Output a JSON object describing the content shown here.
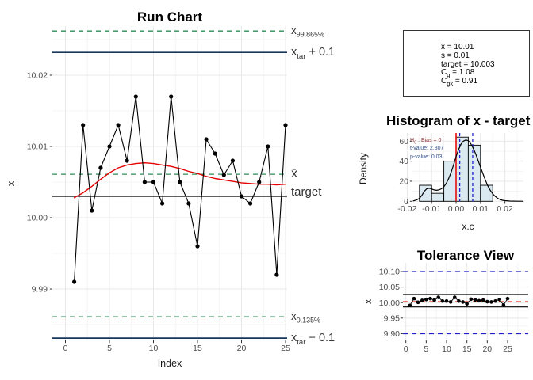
{
  "colors": {
    "series": "#000000",
    "smoother_red": "#e60000",
    "quantile_dashed_green": "#2e8b57",
    "limit_solid_navy": "#16365c",
    "spec_dashed_blue": "#2222cc",
    "target_dashed_red": "#e60000",
    "histogram_fill": "#dbe9f1",
    "grid_major": "#e8e8e8",
    "grid_minor": "#f4f4f4",
    "tick_label": "#4d4d4d",
    "annotation_h0": "#8b3333",
    "annotation_tp": "#33508b"
  },
  "chart_data": [
    {
      "id": "run_chart",
      "type": "line",
      "title": "Run Chart",
      "xlabel": "Index",
      "ylabel": "x",
      "x": [
        1,
        2,
        3,
        4,
        5,
        6,
        7,
        8,
        9,
        10,
        11,
        12,
        13,
        14,
        15,
        16,
        17,
        18,
        19,
        20,
        21,
        22,
        23,
        24,
        25
      ],
      "values": [
        9.991,
        10.013,
        10.001,
        10.007,
        10.01,
        10.013,
        10.008,
        10.017,
        10.005,
        10.005,
        10.002,
        10.017,
        10.005,
        10.002,
        9.996,
        10.011,
        10.009,
        10.006,
        10.008,
        10.003,
        10.002,
        10.005,
        10.01,
        9.992,
        10.013
      ],
      "smoother": {
        "color": "#e60000",
        "x": [
          1,
          2,
          3,
          4,
          5,
          6,
          7,
          8,
          9,
          10,
          11,
          12,
          13,
          14,
          15,
          16,
          17,
          18,
          19,
          20,
          21,
          22,
          23,
          24,
          25
        ],
        "y": [
          10.0028,
          10.0035,
          10.0044,
          10.0054,
          10.0063,
          10.007,
          10.0074,
          10.0076,
          10.0077,
          10.0076,
          10.0074,
          10.0072,
          10.0069,
          10.0065,
          10.0062,
          10.0058,
          10.0055,
          10.0053,
          10.0051,
          10.0049,
          10.0048,
          10.0047,
          10.0047,
          10.0046,
          10.0047
        ]
      },
      "hlines": [
        {
          "value": 10.0262,
          "color": "#2e8b57",
          "dash": true,
          "width": 1.3,
          "label": {
            "base": "x",
            "sub": "99.865%",
            "post": ""
          }
        },
        {
          "value": 10.0232,
          "color": "#16365c",
          "dash": false,
          "width": 1.7,
          "label": {
            "base": "x",
            "sub": "tar",
            "post": " + 0.1"
          }
        },
        {
          "value": 10.0061,
          "color": "#2e8b57",
          "dash": true,
          "width": 1.3,
          "label": {
            "base": "x̄",
            "sub": "",
            "post": ""
          }
        },
        {
          "value": 10.003,
          "color": "#000000",
          "dash": false,
          "width": 1.2,
          "label": {
            "base": "target",
            "sub": "",
            "post": ""
          }
        },
        {
          "value": 9.9861,
          "color": "#2e8b57",
          "dash": true,
          "width": 1.3,
          "label": {
            "base": "x",
            "sub": "0.135%",
            "post": ""
          }
        },
        {
          "value": 9.9831,
          "color": "#16365c",
          "dash": false,
          "width": 1.7,
          "label": {
            "base": "x",
            "sub": "tar",
            "post": " − 0.1"
          }
        }
      ],
      "xticks": [
        0,
        5,
        10,
        15,
        20,
        25
      ],
      "xtick_labels": [
        "0",
        "5",
        "10",
        "15",
        "20",
        "25"
      ],
      "yticks": [
        9.99,
        10.0,
        10.01,
        10.02
      ],
      "ytick_labels": [
        "9.99",
        "10.00",
        "10.01",
        "10.02"
      ],
      "xlim": [
        -1.486,
        25.18
      ],
      "ylim": [
        9.98278,
        10.02689
      ]
    },
    {
      "id": "histogram",
      "type": "histogram",
      "title": "Histogram of x - target",
      "xlabel": "x.c",
      "ylabel": "Density",
      "bins": {
        "start": -0.015,
        "width": 0.005,
        "heights": [
          16,
          8,
          40,
          64,
          56,
          16
        ]
      },
      "bar_fill": "#dbe9f1",
      "bar_stroke": "#000000",
      "density_curve": {
        "x": [
          -0.0175,
          -0.016,
          -0.015,
          -0.014,
          -0.013,
          -0.012,
          -0.011,
          -0.01,
          -0.009,
          -0.008,
          -0.007,
          -0.006,
          -0.005,
          -0.004,
          -0.003,
          -0.002,
          -0.001,
          0.0,
          0.001,
          0.002,
          0.003,
          0.004,
          0.005,
          0.006,
          0.007,
          0.008,
          0.009,
          0.01,
          0.011,
          0.012,
          0.013,
          0.014,
          0.015,
          0.016,
          0.017,
          0.018,
          0.019,
          0.02,
          0.022,
          0.025,
          0.0275
        ],
        "y": [
          0.4,
          1.5,
          3,
          6,
          10,
          12.5,
          13,
          12.3,
          11.4,
          11,
          11.4,
          12.5,
          14.5,
          18,
          23,
          29,
          36.5,
          44.5,
          51.5,
          57,
          60,
          61.2,
          60.5,
          57.5,
          53,
          47.5,
          41,
          34,
          27.5,
          21,
          15.5,
          11,
          7.5,
          5,
          3,
          1.8,
          1,
          0.6,
          0.2,
          0.1,
          0.05
        ]
      },
      "vlines": [
        {
          "value": 0.0,
          "color": "#e60000",
          "dash": false,
          "width": 1.5
        },
        {
          "value": 0.0015,
          "color": "#2222cc",
          "dash": true,
          "width": 1.3
        },
        {
          "value": 0.0068,
          "color": "#2222cc",
          "dash": true,
          "width": 1.3
        }
      ],
      "annotations": [
        {
          "base": "H",
          "sub": "0",
          "post": " : Bias = 0",
          "color": "#8b3333"
        },
        {
          "base": "t-value: 2.307",
          "sub": "",
          "post": "",
          "color": "#33508b"
        },
        {
          "base": "p-value: 0.03",
          "sub": "",
          "post": "",
          "color": "#33508b"
        }
      ],
      "xticks": [
        -0.02,
        -0.01,
        0,
        0.01,
        0.02
      ],
      "xtick_labels": [
        "-0.02",
        "-0.01",
        "0.00",
        "0.01",
        "0.02"
      ],
      "yticks": [
        0,
        20,
        40,
        60
      ],
      "ytick_labels": [
        "0",
        "20",
        "40",
        "60"
      ],
      "xlim": [
        -0.017857,
        0.027597
      ],
      "ylim": [
        0,
        68.13
      ]
    },
    {
      "id": "tolerance_view",
      "type": "scatter-line",
      "title": "Tolerance View",
      "xlabel": "",
      "ylabel": "x",
      "x": [
        1,
        2,
        3,
        4,
        5,
        6,
        7,
        8,
        9,
        10,
        11,
        12,
        13,
        14,
        15,
        16,
        17,
        18,
        19,
        20,
        21,
        22,
        23,
        24,
        25
      ],
      "values": [
        9.991,
        10.013,
        10.001,
        10.007,
        10.01,
        10.013,
        10.008,
        10.017,
        10.005,
        10.005,
        10.002,
        10.017,
        10.005,
        10.002,
        9.996,
        10.011,
        10.009,
        10.006,
        10.008,
        10.003,
        10.002,
        10.005,
        10.01,
        9.992,
        10.013
      ],
      "hlines": [
        {
          "value": 10.1,
          "color": "#2222cc",
          "dash": true,
          "width": 1.3
        },
        {
          "value": 10.0262,
          "color": "#000000",
          "dash": false,
          "width": 1.2
        },
        {
          "value": 10.003,
          "color": "#e60000",
          "dash": true,
          "width": 1.1
        },
        {
          "value": 9.9861,
          "color": "#000000",
          "dash": false,
          "width": 1.2
        },
        {
          "value": 9.9,
          "color": "#2222cc",
          "dash": true,
          "width": 1.3
        }
      ],
      "xticks": [
        0,
        5,
        10,
        15,
        20,
        25
      ],
      "xtick_labels": [
        "0",
        "5",
        "10",
        "15",
        "20",
        "25"
      ],
      "yticks": [
        9.9,
        9.95,
        10.0,
        10.05,
        10.1
      ],
      "ytick_labels": [
        "9.90",
        "9.95",
        "10.00",
        "10.05",
        "10.10"
      ],
      "xlim": [
        -0.721,
        30.07
      ],
      "ylim": [
        9.8781,
        10.1281
      ]
    }
  ],
  "stats_box": {
    "lines": [
      {
        "base": "x̄",
        "sub": "",
        "post": " = 10.01"
      },
      {
        "base": "s",
        "sub": "",
        "post": " = 0.01"
      },
      {
        "base": "target",
        "sub": "",
        "post": " = 10.003"
      },
      {
        "base": "C",
        "sub": "g",
        "post": " = 1.08"
      },
      {
        "base": "C",
        "sub": "gk",
        "post": " = 0.91"
      }
    ]
  }
}
